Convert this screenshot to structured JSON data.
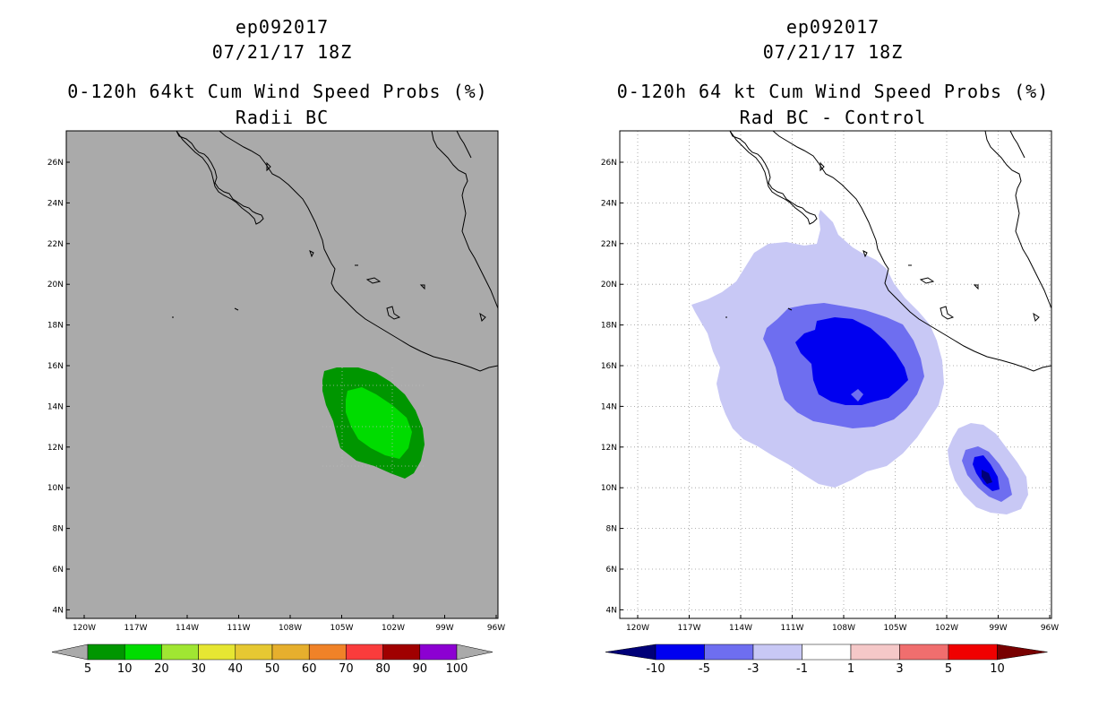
{
  "left": {
    "storm_id": "ep092017",
    "datetime": "07/21/17 18Z",
    "product": "0-120h 64kt Cum Wind Speed Probs (%)",
    "subtitle": "Radii BC",
    "lon_ticks": [
      "120W",
      "117W",
      "114W",
      "111W",
      "108W",
      "105W",
      "102W",
      "99W",
      "96W"
    ],
    "lat_ticks": [
      "26N",
      "24N",
      "22N",
      "20N",
      "18N",
      "16N",
      "14N",
      "12N",
      "10N",
      "8N",
      "6N",
      "4N"
    ],
    "colorbar": {
      "labels": [
        "5",
        "10",
        "20",
        "30",
        "40",
        "50",
        "60",
        "70",
        "80",
        "90",
        "100"
      ],
      "colors": [
        "#009600",
        "#00dc00",
        "#a0e632",
        "#e6e632",
        "#e6c832",
        "#e6af2d",
        "#f08228",
        "#fa3c3c",
        "#a00000",
        "#8c00d2"
      ]
    }
  },
  "right": {
    "storm_id": "ep092017",
    "datetime": "07/21/17 18Z",
    "product": "0-120h 64 kt Cum Wind Speed Probs (%)",
    "subtitle": "Rad BC - Control",
    "lon_ticks": [
      "120W",
      "117W",
      "114W",
      "111W",
      "108W",
      "105W",
      "102W",
      "99W",
      "96W"
    ],
    "lat_ticks": [
      "26N",
      "24N",
      "22N",
      "20N",
      "18N",
      "16N",
      "14N",
      "12N",
      "10N",
      "8N",
      "6N",
      "4N"
    ],
    "colorbar": {
      "labels": [
        "-10",
        "-5",
        "-3",
        "-1",
        "1",
        "3",
        "5",
        "10"
      ],
      "colors": [
        "#000078",
        "#0000f0",
        "#6e6ef0",
        "#c8c8f5",
        "#ffffff",
        "#f5c8c8",
        "#f06e6e",
        "#f00000",
        "#780000"
      ]
    }
  },
  "colors": {
    "left_background": "#aaaaaa",
    "grid": "#999999"
  }
}
